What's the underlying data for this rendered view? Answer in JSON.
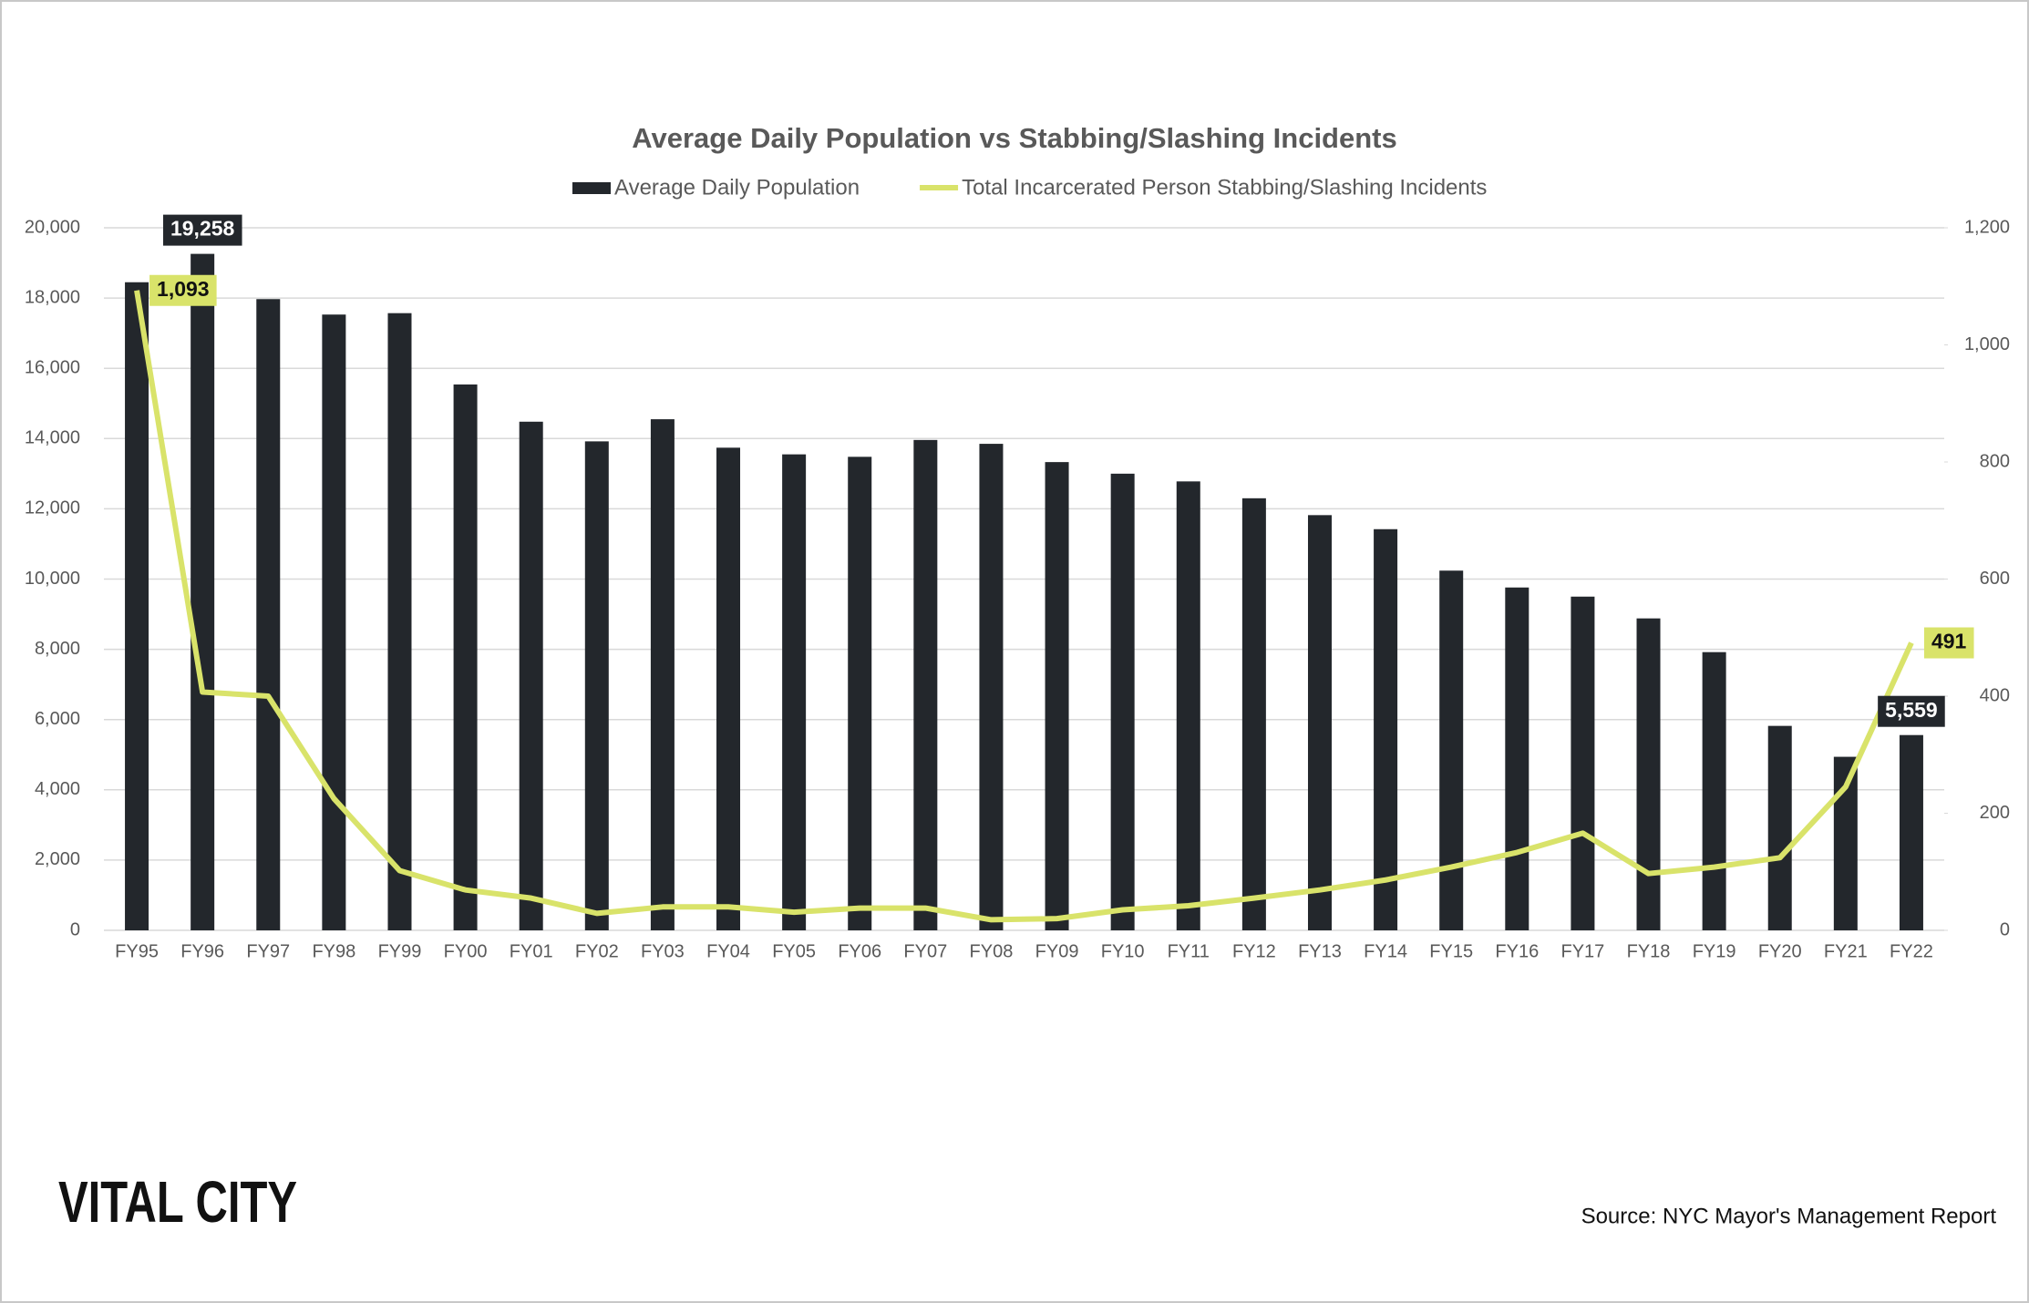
{
  "chart_data": {
    "type": "bar-line",
    "title": "Average Daily Population vs Stabbing/Slashing Incidents",
    "categories": [
      "FY95",
      "FY96",
      "FY97",
      "FY98",
      "FY99",
      "FY00",
      "FY01",
      "FY02",
      "FY03",
      "FY04",
      "FY05",
      "FY06",
      "FY07",
      "FY08",
      "FY09",
      "FY10",
      "FY11",
      "FY12",
      "FY13",
      "FY14",
      "FY15",
      "FY16",
      "FY17",
      "FY18",
      "FY19",
      "FY20",
      "FY21",
      "FY22"
    ],
    "series": [
      {
        "name": "Average Daily Population",
        "type": "bar",
        "color": "#23272c",
        "values": [
          18450,
          19258,
          17970,
          17530,
          17570,
          15540,
          14480,
          13920,
          14550,
          13740,
          13550,
          13480,
          13960,
          13850,
          13330,
          13000,
          12780,
          12300,
          11820,
          11420,
          10240,
          9760,
          9500,
          8880,
          7920,
          5820,
          4940,
          5559
        ],
        "value_labels": [
          null,
          "19,258",
          null,
          null,
          null,
          null,
          null,
          null,
          null,
          null,
          null,
          null,
          null,
          null,
          null,
          null,
          null,
          null,
          null,
          null,
          null,
          null,
          null,
          null,
          null,
          null,
          null,
          "5,559"
        ]
      },
      {
        "name": "Total Incarcerated Person Stabbing/Slashing Incidents",
        "type": "line",
        "axis": "y2",
        "color": "#d9e36a",
        "values": [
          1093,
          407,
          400,
          225,
          102,
          69,
          55,
          29,
          40,
          40,
          31,
          38,
          38,
          18,
          20,
          35,
          42,
          55,
          69,
          86,
          108,
          133,
          166,
          97,
          108,
          124,
          245,
          491
        ],
        "value_labels": [
          "1,093",
          null,
          null,
          null,
          null,
          null,
          null,
          null,
          null,
          null,
          null,
          null,
          null,
          null,
          null,
          null,
          null,
          null,
          null,
          null,
          null,
          null,
          null,
          null,
          null,
          null,
          null,
          "491"
        ]
      }
    ],
    "ylim": [
      0,
      20000
    ],
    "yticks": [
      0,
      {
        "value": 2000,
        "label": "2,000"
      },
      {
        "value": 4000,
        "label": "4,000"
      },
      {
        "value": 6000,
        "label": "6,000"
      },
      {
        "value": 8000,
        "label": "8,000"
      },
      {
        "value": 10000,
        "label": "10,000"
      },
      {
        "value": 12000,
        "label": "12,000"
      },
      {
        "value": 14000,
        "label": "14,000"
      },
      {
        "value": 16000,
        "label": "16,000"
      },
      {
        "value": 18000,
        "label": "18,000"
      },
      {
        "value": 20000,
        "label": "20,000"
      }
    ],
    "y2lim": [
      0,
      1200
    ],
    "y2ticks": [
      0,
      200,
      400,
      600,
      800,
      {
        "value": 1000,
        "label": "1,000"
      },
      {
        "value": 1200,
        "label": "1,200"
      }
    ],
    "grid": true,
    "legend": "top"
  },
  "logo": "VITAL CITY",
  "source": "Source: NYC Mayor's Management Report"
}
